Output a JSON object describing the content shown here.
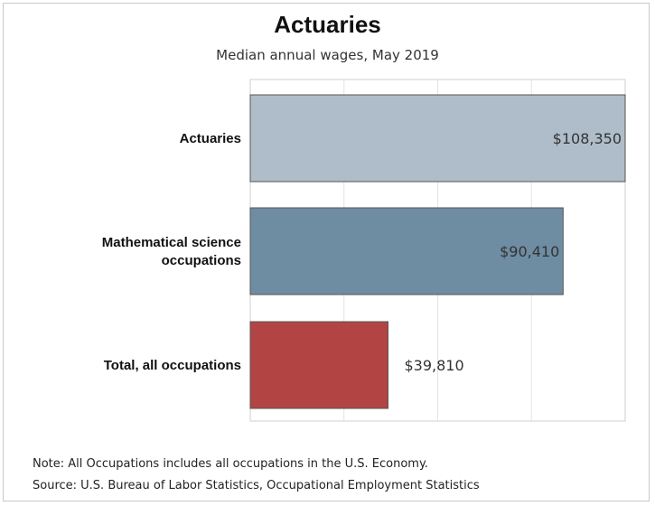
{
  "header": {
    "title": "Actuaries",
    "subtitle": "Median annual wages, May 2019"
  },
  "footer": {
    "note": "Note: All Occupations includes all occupations in the U.S. Economy.",
    "source": "Source: U.S. Bureau of Labor Statistics, Occupational Employment Statistics"
  },
  "chart_data": {
    "type": "bar",
    "orientation": "horizontal",
    "title": "Actuaries",
    "subtitle": "Median annual wages, May 2019",
    "categories": [
      [
        "Actuaries"
      ],
      [
        "Mathematical science",
        "occupations"
      ],
      [
        "Total, all occupations"
      ]
    ],
    "values": [
      108350,
      90410,
      39810
    ],
    "data_labels": [
      "$108,350",
      "$90,410",
      "$39,810"
    ],
    "colors": [
      "#aebdc9",
      "#6e8ca2",
      "#b34444"
    ],
    "xlim": [
      0,
      108350
    ],
    "grid": true,
    "legend": "none"
  }
}
